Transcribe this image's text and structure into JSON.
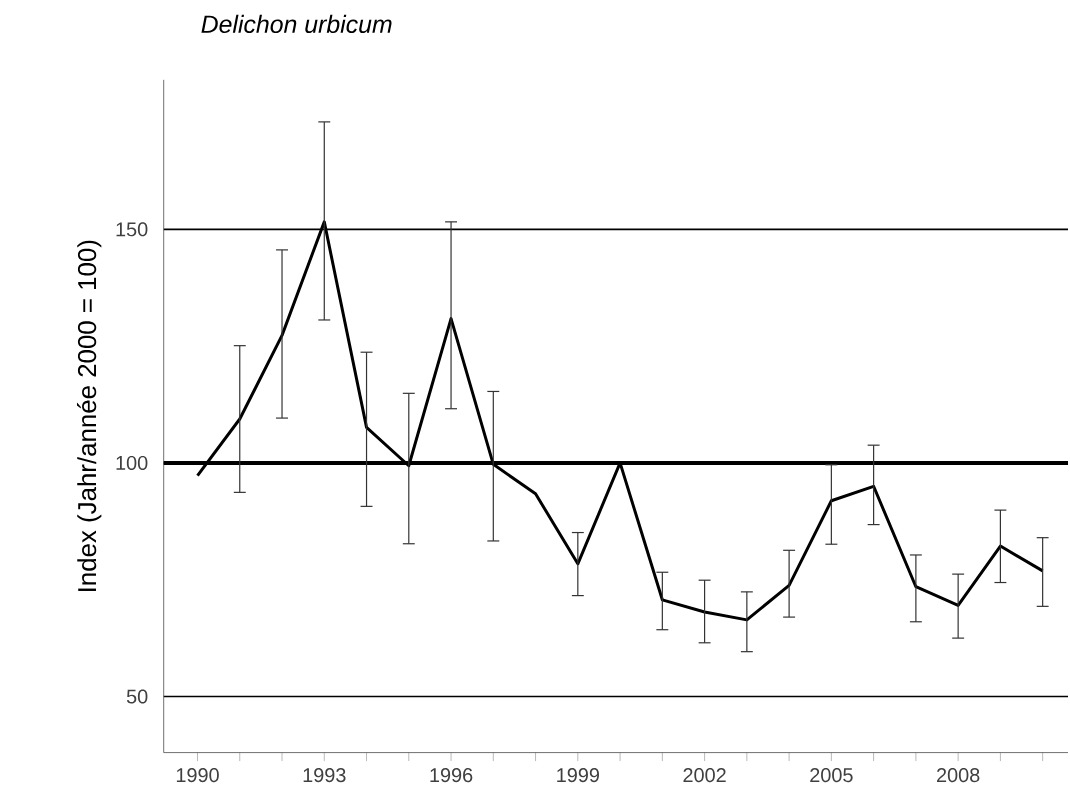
{
  "chart_data": {
    "type": "line",
    "title": "Delichon urbicum",
    "ylabel": "Index (Jahr/année 2000 = 100)",
    "x": [
      1990,
      1991,
      1992,
      1993,
      1994,
      1995,
      1996,
      1997,
      1998,
      1999,
      2000,
      2001,
      2002,
      2003,
      2004,
      2005,
      2006,
      2007,
      2008,
      2009,
      2010
    ],
    "series": [
      {
        "color": "#000000",
        "values": [
          97.3,
          109.4,
          127.3,
          151.6,
          107.6,
          99.4,
          130.9,
          99.7,
          93.4,
          78.4,
          100,
          70.7,
          68.1,
          66.4,
          73.8,
          91.9,
          95,
          73.5,
          69.5,
          82.2,
          76.9
        ],
        "errors": [
          null,
          [
            93.7,
            125.1
          ],
          [
            109.6,
            145.6
          ],
          [
            130.6,
            173
          ],
          [
            90.7,
            123.7
          ],
          [
            82.7,
            114.9
          ],
          [
            111.6,
            151.6
          ],
          [
            83.3,
            115.3
          ],
          null,
          [
            71.6,
            85.1
          ],
          null,
          [
            64.3,
            76.6
          ],
          [
            61.5,
            74.9
          ],
          [
            59.6,
            72.4
          ],
          [
            67,
            81.3
          ],
          [
            82.6,
            99.6
          ],
          [
            86.8,
            103.8
          ],
          [
            66,
            80.3
          ],
          [
            62.5,
            76.2
          ],
          [
            74.4,
            89.9
          ],
          [
            69.3,
            84
          ]
        ]
      }
    ],
    "xlim": [
      1989.2,
      2010.6
    ],
    "ylim": [
      38,
      182
    ],
    "xticks": [
      1990,
      {
        "value": 1991,
        "label": null
      },
      {
        "value": 1992,
        "label": null
      },
      1993,
      {
        "value": 1994,
        "label": null
      },
      {
        "value": 1995,
        "label": null
      },
      1996,
      {
        "value": 1997,
        "label": null
      },
      {
        "value": 1998,
        "label": null
      },
      1999,
      {
        "value": 2000,
        "label": null
      },
      {
        "value": 2001,
        "label": null
      },
      2002,
      {
        "value": 2003,
        "label": null
      },
      {
        "value": 2004,
        "label": null
      },
      2005,
      {
        "value": 2006,
        "label": null
      },
      {
        "value": 2007,
        "label": null
      },
      2008,
      {
        "value": 2009,
        "label": null
      },
      {
        "value": 2010,
        "label": null
      }
    ],
    "yticks": [
      50,
      100,
      150
    ],
    "grid": "y",
    "marker": "none",
    "line_style": "solid",
    "ref_lines": [
      {
        "axis": "y",
        "value": 100,
        "color": "#000000",
        "line_style": "solid"
      }
    ]
  }
}
